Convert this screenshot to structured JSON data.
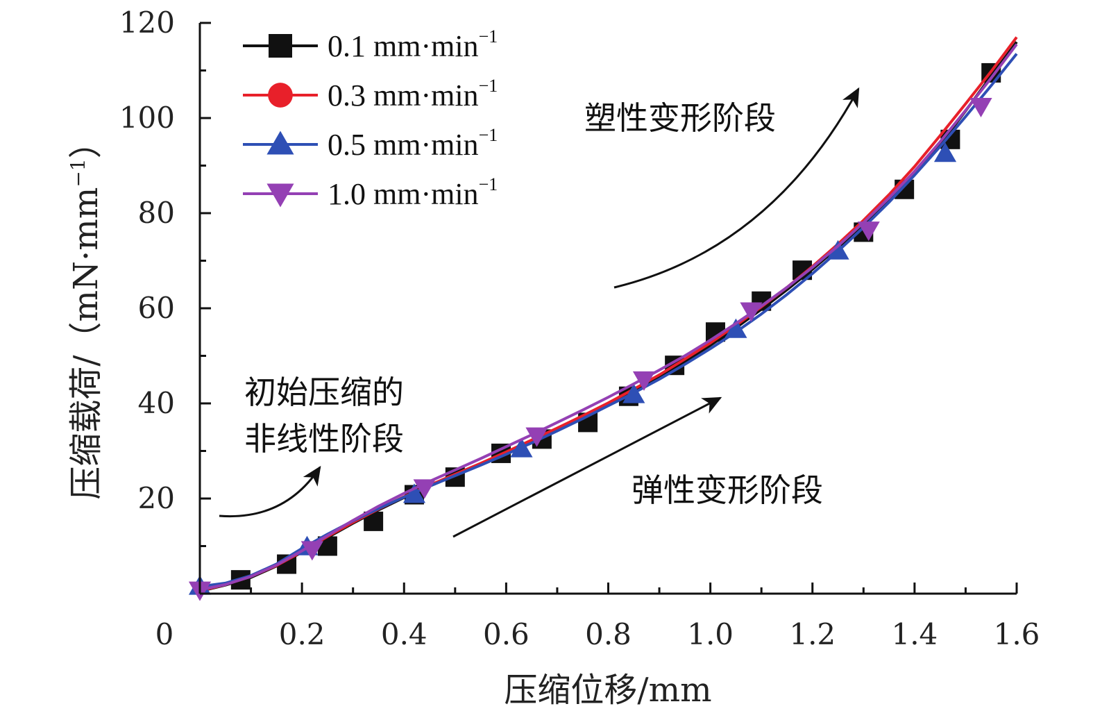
{
  "chart_data": {
    "type": "line",
    "title": "",
    "xlabel": "压缩位移/mm",
    "ylabel": "压缩载荷/（mN·mm",
    "ylabel_sup": "−1",
    "ylabel_close": "）",
    "xlim": [
      0,
      1.6
    ],
    "ylim": [
      0,
      120
    ],
    "x_ticks": [
      "0.2",
      "0.4",
      "0.6",
      "0.8",
      "1.0",
      "1.2",
      "1.4",
      "1.6"
    ],
    "x_tick_values": [
      0.2,
      0.4,
      0.6,
      0.8,
      1.0,
      1.2,
      1.4,
      1.6
    ],
    "x_origin_label": "0",
    "y_ticks": [
      "20",
      "40",
      "60",
      "80",
      "100",
      "120"
    ],
    "y_tick_values": [
      20,
      40,
      60,
      80,
      100,
      120
    ],
    "grid": false,
    "legend_position": "top-left",
    "series": [
      {
        "name": "0.1 mm·min",
        "name_sup": "−1",
        "color": "#111111",
        "marker": "square",
        "x": [
          0.0,
          0.05,
          0.1,
          0.15,
          0.2,
          0.25,
          0.3,
          0.35,
          0.4,
          0.45,
          0.5,
          0.55,
          0.6,
          0.65,
          0.7,
          0.75,
          0.8,
          0.85,
          0.9,
          0.95,
          1.0,
          1.05,
          1.1,
          1.15,
          1.2,
          1.25,
          1.3,
          1.35,
          1.4,
          1.45,
          1.5,
          1.55,
          1.6
        ],
        "y": [
          0.5,
          1.8,
          3.4,
          5.8,
          8.7,
          11.8,
          14.8,
          17.6,
          20.2,
          22.6,
          24.9,
          27.2,
          29.6,
          32.0,
          34.5,
          37.1,
          39.8,
          42.6,
          45.6,
          48.8,
          52.2,
          55.9,
          59.8,
          63.9,
          68.2,
          72.8,
          77.6,
          82.8,
          88.4,
          94.5,
          101.5,
          108.8,
          116.0
        ],
        "marker_x": [
          0.08,
          0.17,
          0.25,
          0.34,
          0.42,
          0.5,
          0.59,
          0.67,
          0.76,
          0.84,
          0.93,
          1.01,
          1.1,
          1.18,
          1.3,
          1.38,
          1.47,
          1.55
        ],
        "marker_y": [
          2.9,
          6.2,
          10.0,
          15.2,
          20.8,
          24.5,
          29.5,
          32.5,
          36.0,
          41.5,
          48.0,
          55.0,
          61.5,
          68.0,
          76.0,
          85.0,
          95.5,
          109.5
        ]
      },
      {
        "name": "0.3 mm·min",
        "name_sup": "−1",
        "color": "#e8202a",
        "marker": "circle",
        "x": [
          0.0,
          0.05,
          0.1,
          0.15,
          0.2,
          0.25,
          0.3,
          0.35,
          0.4,
          0.45,
          0.5,
          0.55,
          0.6,
          0.65,
          0.7,
          0.75,
          0.8,
          0.85,
          0.9,
          0.95,
          1.0,
          1.05,
          1.1,
          1.15,
          1.2,
          1.25,
          1.3,
          1.35,
          1.4,
          1.45,
          1.5,
          1.55,
          1.6
        ],
        "y": [
          0.6,
          1.9,
          3.6,
          5.9,
          8.8,
          12.0,
          15.0,
          17.8,
          20.4,
          22.8,
          25.1,
          27.4,
          29.8,
          32.3,
          34.8,
          37.4,
          40.1,
          43.0,
          46.0,
          49.3,
          52.7,
          56.4,
          60.3,
          64.4,
          68.8,
          73.5,
          78.5,
          83.9,
          89.8,
          96.3,
          103.0,
          109.8,
          117.0
        ],
        "marker_x": [],
        "marker_y": []
      },
      {
        "name": "0.5 mm·min",
        "name_sup": "−1",
        "color": "#2e4fb5",
        "marker": "triangle-up",
        "x": [
          0.0,
          0.05,
          0.1,
          0.15,
          0.2,
          0.25,
          0.3,
          0.35,
          0.4,
          0.45,
          0.5,
          0.55,
          0.6,
          0.65,
          0.7,
          0.75,
          0.8,
          0.85,
          0.9,
          0.95,
          1.0,
          1.05,
          1.1,
          1.15,
          1.2,
          1.25,
          1.3,
          1.35,
          1.4,
          1.45,
          1.5,
          1.55,
          1.6
        ],
        "y": [
          1.5,
          2.2,
          3.8,
          6.2,
          9.5,
          12.5,
          15.3,
          17.9,
          20.3,
          22.6,
          24.8,
          27.0,
          29.3,
          31.7,
          34.2,
          36.8,
          39.5,
          42.2,
          45.1,
          48.2,
          51.5,
          55.0,
          58.8,
          62.9,
          67.3,
          72.0,
          77.0,
          82.3,
          88.0,
          94.0,
          100.3,
          106.8,
          113.5
        ],
        "marker_x": [
          0.0,
          0.21,
          0.42,
          0.63,
          0.85,
          1.05,
          1.25,
          1.46
        ],
        "marker_y": [
          1.5,
          9.8,
          20.8,
          30.4,
          41.8,
          55.5,
          72.0,
          92.5
        ]
      },
      {
        "name": "1.0 mm·min",
        "name_sup": "−1",
        "color": "#9440b4",
        "marker": "triangle-down",
        "x": [
          0.0,
          0.05,
          0.1,
          0.15,
          0.2,
          0.25,
          0.3,
          0.35,
          0.4,
          0.45,
          0.5,
          0.55,
          0.6,
          0.65,
          0.7,
          0.75,
          0.8,
          0.85,
          0.9,
          0.95,
          1.0,
          1.05,
          1.1,
          1.15,
          1.2,
          1.25,
          1.3,
          1.35,
          1.4,
          1.45,
          1.5,
          1.55,
          1.6
        ],
        "y": [
          0.8,
          1.9,
          3.6,
          6.0,
          9.0,
          12.2,
          15.4,
          18.4,
          21.1,
          23.6,
          26.0,
          28.4,
          30.9,
          33.4,
          36.0,
          38.6,
          41.3,
          44.1,
          47.0,
          50.0,
          53.3,
          56.8,
          60.5,
          64.4,
          68.6,
          73.1,
          78.0,
          83.2,
          88.8,
          95.0,
          101.6,
          108.4,
          115.5
        ],
        "marker_x": [
          0.0,
          0.22,
          0.44,
          0.66,
          0.87,
          1.08,
          1.31,
          1.53
        ],
        "marker_y": [
          0.8,
          9.3,
          22.3,
          33.2,
          45.0,
          59.5,
          76.5,
          102.5
        ]
      }
    ],
    "annotations": [
      {
        "lines": [
          "塑性变形阶段"
        ],
        "arrow": "up-right-curved"
      },
      {
        "lines": [
          "弹性变形阶段"
        ],
        "arrow": "up-right-straight"
      },
      {
        "lines": [
          "初始压缩的",
          "非线性阶段"
        ],
        "arrow": "up-right-curved"
      }
    ]
  }
}
